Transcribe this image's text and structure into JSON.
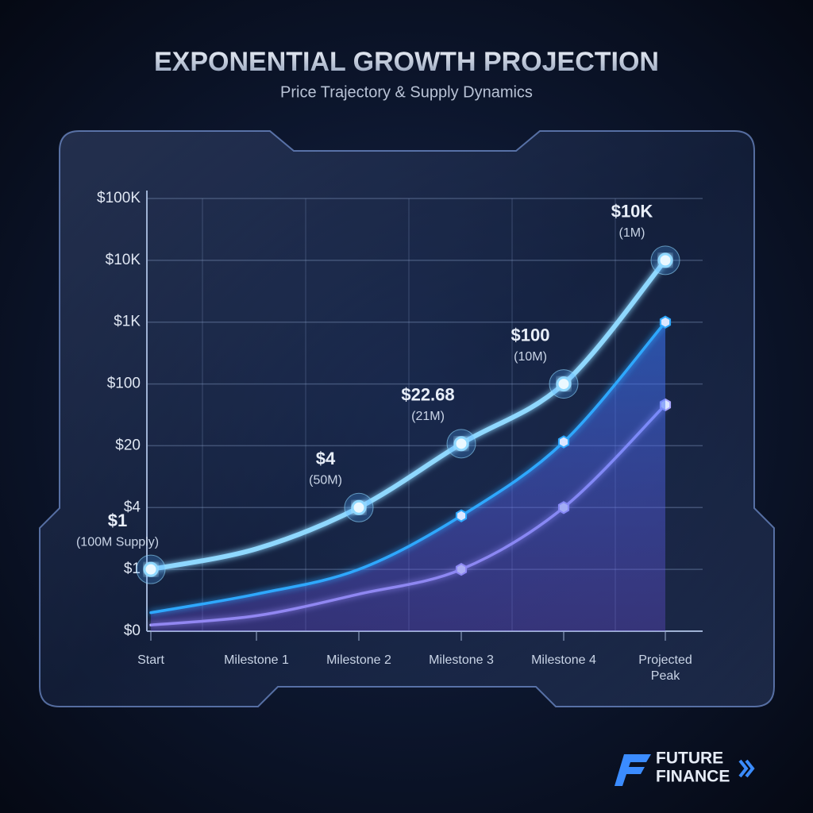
{
  "chart_data": {
    "type": "line",
    "title": "EXPONENTIAL GROWTH PROJECTION",
    "subtitle": "Price Trajectory & Supply Dynamics",
    "categories": [
      "Start",
      "Milestone 1",
      "Milestone 2",
      "Milestone 3",
      "Milestone 4",
      "Projected Peak"
    ],
    "yticks": [
      {
        "value": 0,
        "label": "$0"
      },
      {
        "value": 1,
        "label": "$1"
      },
      {
        "value": 4,
        "label": "$4"
      },
      {
        "value": 20,
        "label": "$20"
      },
      {
        "value": 100,
        "label": "$100"
      },
      {
        "value": 1000,
        "label": "$1K"
      },
      {
        "value": 10000,
        "label": "$10K"
      },
      {
        "value": 100000,
        "label": "$100K"
      }
    ],
    "ylim": [
      0,
      100000
    ],
    "grid": true,
    "series": [
      {
        "color": "#8fd8ff",
        "values": [
          1,
          2,
          4,
          22.68,
          100,
          10000
        ],
        "value_labels": [
          "$1",
          null,
          "$4",
          "$22.68",
          "$100",
          "$10K"
        ],
        "annotations": [
          "(100M Supply)",
          null,
          "(50M)",
          "(21M)",
          "(10M)",
          "(1M)"
        ]
      },
      {
        "color": "#2fa8ff",
        "values": [
          0.3,
          0.6,
          1,
          3.6,
          25,
          1000
        ]
      },
      {
        "color": "#a9a6ff",
        "values": [
          0.1,
          0.25,
          0.6,
          1,
          4,
          73
        ]
      }
    ]
  },
  "brand": {
    "line1": "FUTURE",
    "line2": "FINANCE"
  }
}
